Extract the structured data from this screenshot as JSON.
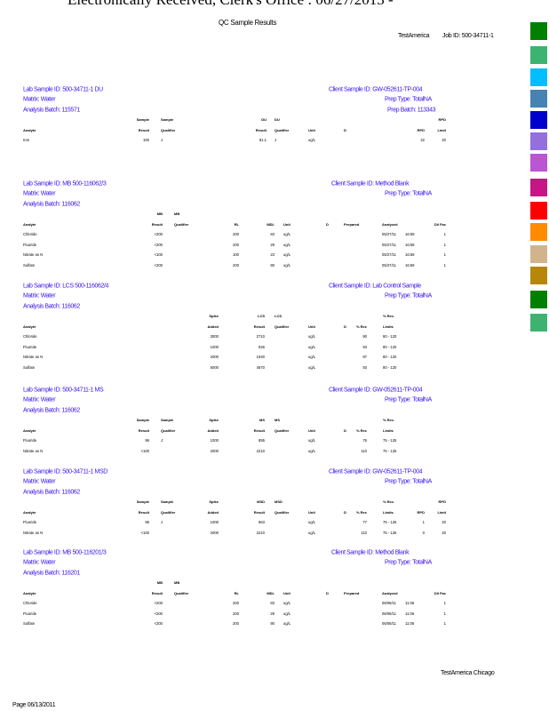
{
  "stamp_text": "Electronically Received, Clerk's Office : 06/27/2013 -",
  "report_title": "QC      Sample            Results",
  "lab_name": "TestAmerica",
  "job_id": "Job    ID:    500-34711-1",
  "footer_lab": "TestAmerica        Chicago",
  "footer_date": "Page 06/13/2011",
  "color_swatches": [
    "#008000",
    "#3cb371",
    "#00bfff",
    "#4682b4",
    "#0000cd",
    "#9370db",
    "#ba55d3",
    "#c71585",
    "#ff0000",
    "#ff8c00",
    "#d2b48c",
    "#b8860b",
    "#008000",
    "#3cb371"
  ],
  "sections": [
    {
      "type": "du",
      "lab_sample_id": "Lab    Sample    ID:    500-34711-1          DU",
      "client_sample_id": "Client     Sample     ID:   GW-052611-TP-004",
      "matrix": "Matrix:      Water",
      "prep_type": "Prep    Type:      TotalNA",
      "analysis_batch": "Analysis       Batch:      115571",
      "prep_batch": "Prep    Batch:       113343",
      "columns": [
        {
          "key": "analyte",
          "h1": "",
          "h2": "Analyte"
        },
        {
          "key": "sample_result",
          "h1": "Sample",
          "h2": "Result"
        },
        {
          "key": "sample_qual",
          "h1": "Sample",
          "h2": "Qualifier"
        },
        {
          "key": "du_result",
          "h1": "DU",
          "h2": "Result"
        },
        {
          "key": "du_qual",
          "h1": "DU",
          "h2": "Qualifier"
        },
        {
          "key": "unit",
          "h1": "",
          "h2": "Unit"
        },
        {
          "key": "d",
          "h1": "",
          "h2": "D"
        },
        {
          "key": "rpd",
          "h1": "",
          "h2": "RPD"
        },
        {
          "key": "rpd_limit",
          "h1": "RPD",
          "h2": "Limit"
        }
      ],
      "rows": [
        [
          "Iron",
          "100",
          "J",
          "81.1",
          "J",
          "ug/L",
          "",
          "22",
          "20"
        ]
      ]
    },
    {
      "type": "mb",
      "lab_sample_id": "Lab    Sample    ID:    MB    500-116062/3",
      "client_sample_id": "Client     Sample     ID:   Method       Blank",
      "matrix": "Matrix:      Water",
      "prep_type": "Prep    Type:      TotalNA",
      "analysis_batch": "Analysis       Batch:      116062",
      "columns": [
        {
          "key": "analyte",
          "h1": "",
          "h2": "Analyte"
        },
        {
          "key": "mb_result",
          "h1": "MB",
          "h2": "Result"
        },
        {
          "key": "mb_qual",
          "h1": "MB",
          "h2": "Qualifier"
        },
        {
          "key": "rl",
          "h1": "",
          "h2": "RL"
        },
        {
          "key": "mdl",
          "h1": "",
          "h2": "MDL"
        },
        {
          "key": "mb_unit",
          "h1": "",
          "h2": "Unit"
        },
        {
          "key": "mb_d",
          "h1": "",
          "h2": "D"
        },
        {
          "key": "prepared",
          "h1": "",
          "h2": "Prepared"
        },
        {
          "key": "analyzed_date",
          "h1": "",
          "h2": "Analyzed"
        },
        {
          "key": "analyzed_time",
          "h1": "",
          "h2": ""
        },
        {
          "key": "dil",
          "h1": "",
          "h2": "Dil  Fac"
        }
      ],
      "rows": [
        [
          "Chloride",
          "<200",
          "",
          "200",
          "83",
          "ug/L",
          "",
          "",
          "05/27/11",
          "16:59",
          "1"
        ],
        [
          "Fluoride",
          "<200",
          "",
          "200",
          "29",
          "ug/L",
          "",
          "",
          "05/27/11",
          "16:59",
          "1"
        ],
        [
          "Nitrate    as    N",
          "<100",
          "",
          "100",
          "23",
          "ug/L",
          "",
          "",
          "05/27/11",
          "16:59",
          "1"
        ],
        [
          "Sulfate",
          "<200",
          "",
          "200",
          "90",
          "ug/L",
          "",
          "",
          "05/27/11",
          "16:59",
          "1"
        ]
      ]
    },
    {
      "type": "lcs",
      "lab_sample_id": "Lab    Sample    ID:    LCS    500-116062/4",
      "client_sample_id": "Client     Sample     ID:   Lab    Control      Sample",
      "matrix": "Matrix:      Water",
      "prep_type": "Prep    Type:      TotalNA",
      "analysis_batch": "Analysis       Batch:      116062",
      "columns": [
        {
          "key": "analyte",
          "h1": "",
          "h2": "Analyte"
        },
        {
          "key": "spike",
          "h1": "Spike",
          "h2": "Added"
        },
        {
          "key": "qc_result",
          "h1": "LCS",
          "h2": "Result"
        },
        {
          "key": "qc_qual",
          "h1": "LCS",
          "h2": "Qualifier"
        },
        {
          "key": "unit",
          "h1": "",
          "h2": "Unit"
        },
        {
          "key": "d",
          "h1": "",
          "h2": "D"
        },
        {
          "key": "rec",
          "h1": "",
          "h2": "%  Rec"
        },
        {
          "key": "limits",
          "h1": "%  Rec.",
          "h2": "Limits"
        }
      ],
      "rows": [
        [
          "Chloride",
          "3000",
          "2710",
          "",
          "ug/L",
          "",
          "90",
          "80  -  120"
        ],
        [
          "Fluoride",
          "1000",
          "926",
          "",
          "ug/L",
          "",
          "93",
          "80  -  120"
        ],
        [
          "Nitrate    as    N",
          "2000",
          "1940",
          "",
          "ug/L",
          "",
          "97",
          "80  -  120"
        ],
        [
          "Sulfate",
          "5000",
          "4670",
          "",
          "ug/L",
          "",
          "93",
          "80  -  120"
        ]
      ]
    },
    {
      "type": "ms",
      "lab_sample_id": "Lab    Sample    ID:    500-34711-1          MS",
      "client_sample_id": "Client     Sample     ID:   GW-052611-TP-004",
      "matrix": "Matrix:      Water",
      "prep_type": "Prep    Type:      TotalNA",
      "analysis_batch": "Analysis       Batch:      116062",
      "columns": [
        {
          "key": "analyte",
          "h1": "",
          "h2": "Analyte"
        },
        {
          "key": "sample_result",
          "h1": "Sample",
          "h2": "Result"
        },
        {
          "key": "sample_qual",
          "h1": "Sample",
          "h2": "Qualifier"
        },
        {
          "key": "spike",
          "h1": "Spike",
          "h2": "Added"
        },
        {
          "key": "qc_result",
          "h1": "MS",
          "h2": "Result"
        },
        {
          "key": "qc_qual",
          "h1": "MS",
          "h2": "Qualifier"
        },
        {
          "key": "unit",
          "h1": "",
          "h2": "Unit"
        },
        {
          "key": "d",
          "h1": "",
          "h2": "D"
        },
        {
          "key": "rec",
          "h1": "",
          "h2": "%  Rec"
        },
        {
          "key": "limits",
          "h1": "%  Rec.",
          "h2": "Limits"
        }
      ],
      "rows": [
        [
          "Fluoride",
          "96",
          "J",
          "1000",
          "855",
          "",
          "ug/L",
          "",
          "76",
          "75  -  125"
        ],
        [
          "Nitrate    as    N",
          "<100",
          "",
          "2000",
          "2210",
          "",
          "ug/L",
          "",
          "110",
          "75  -  125"
        ]
      ]
    },
    {
      "type": "msd",
      "lab_sample_id": "Lab    Sample    ID:    500-34711-1          MSD",
      "client_sample_id": "Client     Sample     ID:   GW-052611-TP-004",
      "matrix": "Matrix:      Water",
      "prep_type": "Prep    Type:      TotalNA",
      "analysis_batch": "Analysis       Batch:      116062",
      "columns": [
        {
          "key": "analyte",
          "h1": "",
          "h2": "Analyte"
        },
        {
          "key": "sample_result",
          "h1": "Sample",
          "h2": "Result"
        },
        {
          "key": "sample_qual",
          "h1": "Sample",
          "h2": "Qualifier"
        },
        {
          "key": "spike",
          "h1": "Spike",
          "h2": "Added"
        },
        {
          "key": "qc_result",
          "h1": "MSD",
          "h2": "Result"
        },
        {
          "key": "qc_qual",
          "h1": "MSD",
          "h2": "Qualifier"
        },
        {
          "key": "unit",
          "h1": "",
          "h2": "Unit"
        },
        {
          "key": "d",
          "h1": "",
          "h2": "D"
        },
        {
          "key": "rec",
          "h1": "",
          "h2": "%  Rec"
        },
        {
          "key": "limits",
          "h1": "%  Rec.",
          "h2": "Limits"
        },
        {
          "key": "rpd",
          "h1": "",
          "h2": "RPD"
        },
        {
          "key": "rpd_limit",
          "h1": "RPD",
          "h2": "Limit"
        }
      ],
      "rows": [
        [
          "Fluoride",
          "96",
          "J",
          "1000",
          "863",
          "",
          "ug/L",
          "",
          "77",
          "75  -  125",
          "1",
          "20"
        ],
        [
          "Nitrate    as    N",
          "<100",
          "",
          "2000",
          "2210",
          "",
          "ug/L",
          "",
          "110",
          "75  -  125",
          "0",
          "20"
        ]
      ]
    },
    {
      "type": "mb",
      "lab_sample_id": "Lab    Sample    ID:    MB    500-116201/3",
      "client_sample_id": "Client     Sample     ID:   Method       Blank",
      "matrix": "Matrix:      Water",
      "prep_type": "Prep    Type:      TotalNA",
      "analysis_batch": "Analysis       Batch:      116201",
      "columns": [
        {
          "key": "analyte",
          "h1": "",
          "h2": "Analyte"
        },
        {
          "key": "mb_result",
          "h1": "MB",
          "h2": "Result"
        },
        {
          "key": "mb_qual",
          "h1": "MB",
          "h2": "Qualifier"
        },
        {
          "key": "rl",
          "h1": "",
          "h2": "RL"
        },
        {
          "key": "mdl",
          "h1": "",
          "h2": "MDL"
        },
        {
          "key": "mb_unit",
          "h1": "",
          "h2": "Unit"
        },
        {
          "key": "mb_d",
          "h1": "",
          "h2": "D"
        },
        {
          "key": "prepared",
          "h1": "",
          "h2": "Prepared"
        },
        {
          "key": "analyzed_date",
          "h1": "",
          "h2": "Analyzed"
        },
        {
          "key": "analyzed_time",
          "h1": "",
          "h2": ""
        },
        {
          "key": "dil",
          "h1": "",
          "h2": "Dil  Fac"
        }
      ],
      "rows": [
        [
          "Chloride",
          "<200",
          "",
          "200",
          "83",
          "ug/L",
          "",
          "",
          "06/08/11",
          "11:06",
          "1"
        ],
        [
          "Fluoride",
          "<200",
          "",
          "200",
          "29",
          "ug/L",
          "",
          "",
          "06/08/11",
          "11:06",
          "1"
        ],
        [
          "Sulfate",
          "<200",
          "",
          "200",
          "90",
          "ug/L",
          "",
          "",
          "06/08/11",
          "11:06",
          "1"
        ]
      ]
    }
  ]
}
